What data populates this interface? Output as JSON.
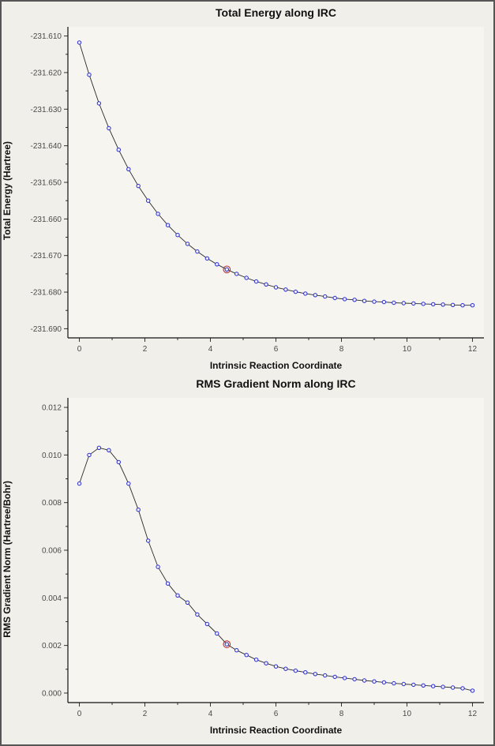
{
  "window": {
    "bg_color": "#f0efe9",
    "plot_bg_color": "#f6f5ef",
    "frame_color": "#565656"
  },
  "chart_data": [
    {
      "type": "line",
      "title": "Total Energy along IRC",
      "xlabel": "Intrinsic Reaction Coordinate",
      "ylabel": "Total Energy (Hartree)",
      "grid": false,
      "legend": "none",
      "xlim": [
        -0.35,
        12.35
      ],
      "ylim": [
        -231.6925,
        -231.6075
      ],
      "xticks": [
        0,
        2,
        4,
        6,
        8,
        10,
        12
      ],
      "xtick_labels": [
        "0",
        "2",
        "4",
        "6",
        "8",
        "10",
        "12"
      ],
      "xticks_minor": [
        1,
        3,
        5,
        7,
        9,
        11
      ],
      "yticks": [
        -231.61,
        -231.62,
        -231.63,
        -231.64,
        -231.65,
        -231.66,
        -231.67,
        -231.68,
        -231.69
      ],
      "ytick_labels": [
        "-231.610",
        "-231.620",
        "-231.630",
        "-231.640",
        "-231.650",
        "-231.660",
        "-231.670",
        "-231.680",
        "-231.690"
      ],
      "yticks_minor": [
        -231.615,
        -231.625,
        -231.635,
        -231.645,
        -231.655,
        -231.665,
        -231.675,
        -231.685
      ],
      "x": [
        0,
        0.3,
        0.6,
        0.9,
        1.2,
        1.5,
        1.8,
        2.1,
        2.4,
        2.7,
        3,
        3.3,
        3.6,
        3.9,
        4.2,
        4.5,
        4.8,
        5.1,
        5.4,
        5.7,
        6,
        6.3,
        6.6,
        6.9,
        7.2,
        7.5,
        7.8,
        8.1,
        8.4,
        8.7,
        9,
        9.3,
        9.6,
        9.9,
        10.2,
        10.5,
        10.8,
        11.1,
        11.4,
        11.7,
        12
      ],
      "y": [
        -231.6118,
        -231.6206,
        -231.6284,
        -231.6352,
        -231.6411,
        -231.6464,
        -231.651,
        -231.655,
        -231.6586,
        -231.6617,
        -231.6644,
        -231.6668,
        -231.6689,
        -231.6708,
        -231.6724,
        -231.6738,
        -231.675,
        -231.6761,
        -231.6771,
        -231.6779,
        -231.6787,
        -231.6793,
        -231.6799,
        -231.6804,
        -231.6808,
        -231.6812,
        -231.6816,
        -231.6819,
        -231.6821,
        -231.6824,
        -231.6826,
        -231.6827,
        -231.6829,
        -231.683,
        -231.6831,
        -231.6832,
        -231.6833,
        -231.6834,
        -231.6835,
        -231.6836,
        -231.6836
      ],
      "highlight_index": 15,
      "line_color": "#2a2a2a",
      "marker_color": "#2a2ad0",
      "marker_fill": "#eef0ff",
      "highlight_color": "#c03030",
      "plot_bg": "#f6f5ef"
    },
    {
      "type": "line",
      "title": "RMS Gradient Norm along IRC",
      "xlabel": "Intrinsic Reaction Coordinate",
      "ylabel": "RMS Gradient Norm (Hartree/Bohr)",
      "grid": false,
      "legend": "none",
      "xlim": [
        -0.35,
        12.35
      ],
      "ylim": [
        -0.0004,
        0.0124
      ],
      "xticks": [
        0,
        2,
        4,
        6,
        8,
        10,
        12
      ],
      "xtick_labels": [
        "0",
        "2",
        "4",
        "6",
        "8",
        "10",
        "12"
      ],
      "xticks_minor": [
        1,
        3,
        5,
        7,
        9,
        11
      ],
      "yticks": [
        0.0,
        0.002,
        0.004,
        0.006,
        0.008,
        0.01,
        0.012
      ],
      "ytick_labels": [
        "0.000",
        "0.002",
        "0.004",
        "0.006",
        "0.008",
        "0.010",
        "0.012"
      ],
      "yticks_minor": [
        0.001,
        0.003,
        0.005,
        0.007,
        0.009,
        0.011
      ],
      "x": [
        0,
        0.3,
        0.6,
        0.9,
        1.2,
        1.5,
        1.8,
        2.1,
        2.4,
        2.7,
        3,
        3.3,
        3.6,
        3.9,
        4.2,
        4.5,
        4.8,
        5.1,
        5.4,
        5.7,
        6,
        6.3,
        6.6,
        6.9,
        7.2,
        7.5,
        7.8,
        8.1,
        8.4,
        8.7,
        9,
        9.3,
        9.6,
        9.9,
        10.2,
        10.5,
        10.8,
        11.1,
        11.4,
        11.7,
        12
      ],
      "y": [
        0.0088,
        0.01,
        0.0103,
        0.0102,
        0.0097,
        0.0088,
        0.0077,
        0.0064,
        0.0053,
        0.0046,
        0.0041,
        0.0038,
        0.0033,
        0.0029,
        0.0025,
        0.00205,
        0.0018,
        0.0016,
        0.0014,
        0.00125,
        0.00112,
        0.00102,
        0.00094,
        0.00087,
        0.0008,
        0.00074,
        0.00068,
        0.00063,
        0.00058,
        0.00053,
        0.00049,
        0.00045,
        0.00041,
        0.00038,
        0.00035,
        0.00032,
        0.00029,
        0.00026,
        0.00023,
        0.0002,
        0.0001
      ],
      "highlight_index": 15,
      "line_color": "#2a2a2a",
      "marker_color": "#2a2ad0",
      "marker_fill": "#eef0ff",
      "highlight_color": "#c03030",
      "plot_bg": "#f6f5ef"
    }
  ]
}
